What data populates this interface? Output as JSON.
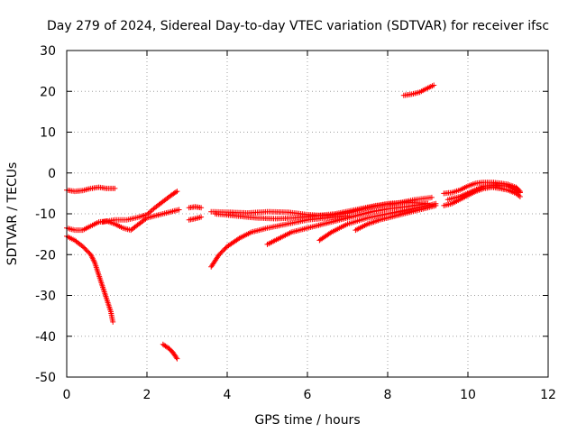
{
  "chart_data": {
    "type": "scatter",
    "title": "Day 279 of 2024, Sidereal Day-to-day VTEC variation (SDTVAR) for receiver ifsc",
    "xlabel": "GPS time / hours",
    "ylabel": "SDTVAR / TECUs",
    "xlim": [
      0,
      12
    ],
    "ylim": [
      -50,
      30
    ],
    "xticks": [
      0,
      2,
      4,
      6,
      8,
      10,
      12
    ],
    "yticks": [
      -50,
      -40,
      -30,
      -20,
      -10,
      0,
      10,
      20,
      30
    ],
    "grid": true,
    "marker": "+",
    "color": "#ff0000",
    "series": [
      {
        "points": [
          [
            0.0,
            -4.2
          ],
          [
            0.2,
            -4.5
          ],
          [
            0.4,
            -4.3
          ],
          [
            0.6,
            -3.8
          ],
          [
            0.8,
            -3.5
          ],
          [
            1.0,
            -3.8
          ],
          [
            1.2,
            -3.8
          ]
        ]
      },
      {
        "points": [
          [
            0.0,
            -13.5
          ],
          [
            0.2,
            -14.0
          ],
          [
            0.4,
            -14.0
          ],
          [
            0.6,
            -13.0
          ],
          [
            0.8,
            -12.0
          ],
          [
            1.0,
            -11.8
          ],
          [
            1.2,
            -12.5
          ],
          [
            1.4,
            -13.5
          ],
          [
            1.6,
            -14.0
          ],
          [
            1.8,
            -12.5
          ],
          [
            2.0,
            -11.0
          ],
          [
            2.2,
            -10.5
          ],
          [
            2.4,
            -10.0
          ],
          [
            2.6,
            -9.5
          ],
          [
            2.8,
            -9.0
          ]
        ]
      },
      {
        "points": [
          [
            0.0,
            -15.5
          ],
          [
            0.2,
            -16.5
          ],
          [
            0.4,
            -18.0
          ],
          [
            0.6,
            -20.0
          ],
          [
            0.7,
            -22.0
          ],
          [
            0.8,
            -25.0
          ],
          [
            0.9,
            -28.0
          ],
          [
            1.0,
            -31.0
          ],
          [
            1.1,
            -34.0
          ],
          [
            1.15,
            -36.5
          ]
        ]
      },
      {
        "points": [
          [
            0.9,
            -12.0
          ],
          [
            1.2,
            -11.5
          ],
          [
            1.5,
            -11.5
          ],
          [
            1.8,
            -10.8
          ],
          [
            2.0,
            -10.2
          ],
          [
            2.2,
            -8.5
          ],
          [
            2.4,
            -7.0
          ],
          [
            2.6,
            -5.5
          ],
          [
            2.75,
            -4.5
          ]
        ]
      },
      {
        "points": [
          [
            2.4,
            -42.0
          ],
          [
            2.55,
            -43.0
          ],
          [
            2.65,
            -44.0
          ],
          [
            2.75,
            -45.5
          ]
        ]
      },
      {
        "points": [
          [
            3.05,
            -8.5
          ],
          [
            3.2,
            -8.3
          ],
          [
            3.35,
            -8.5
          ]
        ]
      },
      {
        "points": [
          [
            3.05,
            -11.5
          ],
          [
            3.2,
            -11.2
          ],
          [
            3.35,
            -10.8
          ]
        ]
      },
      {
        "points": [
          [
            3.6,
            -9.5
          ],
          [
            4.0,
            -9.6
          ],
          [
            4.5,
            -9.8
          ],
          [
            5.0,
            -9.5
          ],
          [
            5.5,
            -9.6
          ],
          [
            6.0,
            -10.2
          ],
          [
            6.5,
            -10.5
          ],
          [
            7.0,
            -9.8
          ],
          [
            7.5,
            -8.5
          ],
          [
            8.0,
            -7.5
          ],
          [
            8.5,
            -7.2
          ],
          [
            9.0,
            -7.5
          ]
        ]
      },
      {
        "points": [
          [
            3.6,
            -23.0
          ],
          [
            3.8,
            -20.0
          ],
          [
            4.0,
            -18.0
          ],
          [
            4.3,
            -16.0
          ],
          [
            4.6,
            -14.5
          ],
          [
            5.0,
            -13.5
          ],
          [
            5.5,
            -12.5
          ],
          [
            6.0,
            -11.5
          ],
          [
            6.5,
            -11.0
          ],
          [
            7.0,
            -10.5
          ]
        ]
      },
      {
        "points": [
          [
            3.7,
            -10.0
          ],
          [
            4.2,
            -10.5
          ],
          [
            4.7,
            -11.0
          ],
          [
            5.2,
            -11.2
          ],
          [
            5.7,
            -11.0
          ],
          [
            6.2,
            -10.5
          ],
          [
            6.7,
            -10.0
          ],
          [
            7.2,
            -9.0
          ],
          [
            7.7,
            -8.0
          ],
          [
            8.2,
            -7.5
          ],
          [
            8.7,
            -6.5
          ],
          [
            9.1,
            -6.0
          ]
        ]
      },
      {
        "points": [
          [
            5.0,
            -17.5
          ],
          [
            5.3,
            -16.0
          ],
          [
            5.6,
            -14.5
          ],
          [
            6.0,
            -13.5
          ],
          [
            6.4,
            -12.5
          ],
          [
            6.8,
            -11.5
          ],
          [
            7.2,
            -10.5
          ],
          [
            7.6,
            -9.5
          ],
          [
            8.0,
            -8.8
          ],
          [
            8.5,
            -8.2
          ],
          [
            9.0,
            -7.5
          ]
        ]
      },
      {
        "points": [
          [
            6.3,
            -16.5
          ],
          [
            6.6,
            -14.5
          ],
          [
            7.0,
            -12.5
          ],
          [
            7.5,
            -11.0
          ],
          [
            8.0,
            -10.0
          ],
          [
            8.5,
            -9.0
          ],
          [
            9.0,
            -8.0
          ],
          [
            9.2,
            -7.5
          ]
        ]
      },
      {
        "points": [
          [
            7.2,
            -14.0
          ],
          [
            7.5,
            -12.5
          ],
          [
            7.8,
            -11.5
          ],
          [
            8.2,
            -10.5
          ],
          [
            8.6,
            -9.5
          ],
          [
            9.0,
            -8.5
          ],
          [
            9.2,
            -8.0
          ]
        ]
      },
      {
        "points": [
          [
            8.4,
            19.0
          ],
          [
            8.6,
            19.3
          ],
          [
            8.8,
            19.8
          ],
          [
            9.0,
            20.8
          ],
          [
            9.15,
            21.5
          ]
        ]
      },
      {
        "points": [
          [
            9.4,
            -5.0
          ],
          [
            9.6,
            -4.8
          ],
          [
            9.8,
            -4.2
          ],
          [
            10.0,
            -3.2
          ],
          [
            10.2,
            -2.5
          ],
          [
            10.4,
            -2.3
          ],
          [
            10.6,
            -2.3
          ],
          [
            10.8,
            -2.5
          ],
          [
            11.0,
            -2.8
          ],
          [
            11.2,
            -3.5
          ],
          [
            11.3,
            -4.5
          ]
        ]
      },
      {
        "points": [
          [
            9.4,
            -8.0
          ],
          [
            9.6,
            -7.5
          ],
          [
            9.8,
            -6.5
          ],
          [
            10.0,
            -5.5
          ],
          [
            10.2,
            -4.5
          ],
          [
            10.4,
            -3.8
          ],
          [
            10.6,
            -3.5
          ],
          [
            10.8,
            -3.8
          ],
          [
            11.0,
            -4.2
          ],
          [
            11.2,
            -5.0
          ],
          [
            11.3,
            -5.8
          ]
        ]
      },
      {
        "points": [
          [
            9.5,
            -6.5
          ],
          [
            9.8,
            -5.8
          ],
          [
            10.1,
            -4.5
          ],
          [
            10.4,
            -3.2
          ],
          [
            10.7,
            -3.0
          ],
          [
            11.0,
            -3.2
          ],
          [
            11.3,
            -4.8
          ]
        ]
      }
    ]
  }
}
